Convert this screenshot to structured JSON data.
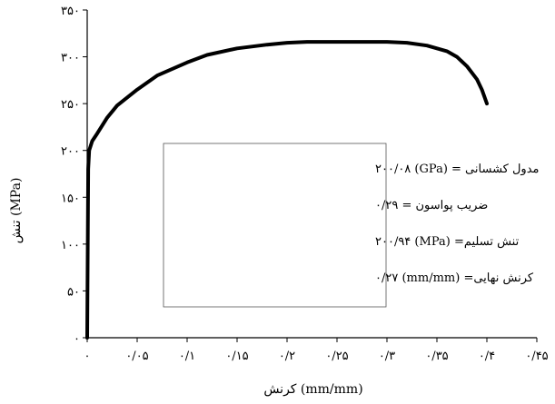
{
  "chart_data": {
    "type": "line",
    "title": "",
    "xlabel": "کرنش (mm/mm)",
    "ylabel": "تنش (MPa)",
    "xlim": [
      0,
      0.45
    ],
    "ylim": [
      0,
      350
    ],
    "x_ticks": [
      0,
      0.05,
      0.1,
      0.15,
      0.2,
      0.25,
      0.3,
      0.35,
      0.4,
      0.45
    ],
    "x_tick_labels": [
      "۰",
      "۰/۰۵",
      "۰/۱",
      "۰/۱۵",
      "۰/۲",
      "۰/۲۵",
      "۰/۳",
      "۰/۳۵",
      "۰/۴",
      "۰/۴۵"
    ],
    "y_ticks": [
      0,
      50,
      100,
      150,
      200,
      250,
      300,
      350
    ],
    "y_tick_labels": [
      "۰",
      "۵۰",
      "۱۰۰",
      "۱۵۰",
      "۲۰۰",
      "۲۵۰",
      "۳۰۰",
      "۳۵۰"
    ],
    "grid": false,
    "series": [
      {
        "color": "#000000",
        "x": [
          0,
          0.001,
          0.002,
          0.005,
          0.01,
          0.02,
          0.03,
          0.05,
          0.07,
          0.1,
          0.12,
          0.15,
          0.18,
          0.2,
          0.22,
          0.25,
          0.27,
          0.3,
          0.32,
          0.34,
          0.36,
          0.37,
          0.38,
          0.39,
          0.395,
          0.4
        ],
        "y": [
          0,
          180,
          200,
          210,
          218,
          235,
          248,
          265,
          280,
          294,
          302,
          309,
          313,
          315,
          316,
          316,
          316,
          316,
          315,
          312,
          306,
          300,
          290,
          276,
          265,
          250
        ]
      }
    ],
    "annotations": [
      "مدول کشسانی = (GPa) ۲۰۰/۰۸",
      "ضریب پواسون = ۰/۲۹",
      "تنش تسلیم= (MPa) ۲۰۰/۹۴",
      "کرنش نهایی= (mm/mm) ۰/۲۷"
    ]
  }
}
